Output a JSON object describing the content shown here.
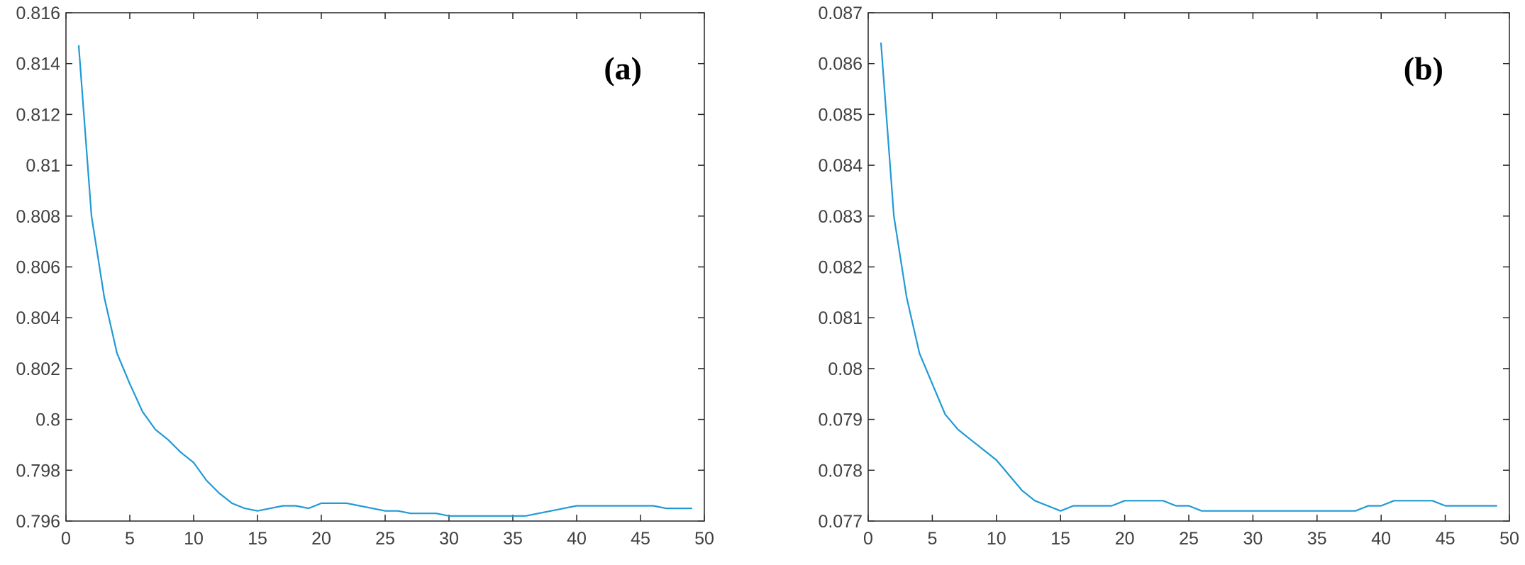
{
  "chart_data": [
    {
      "type": "line",
      "panel_label": "(a)",
      "xlim": [
        0,
        50
      ],
      "ylim": [
        0.796,
        0.816
      ],
      "x_ticks": [
        "0",
        "5",
        "10",
        "15",
        "20",
        "25",
        "30",
        "35",
        "40",
        "45",
        "50"
      ],
      "y_ticks": [
        "0.796",
        "0.798",
        "0.8",
        "0.802",
        "0.804",
        "0.806",
        "0.808",
        "0.81",
        "0.812",
        "0.814",
        "0.816"
      ],
      "grid": false,
      "line_color": "#1f9ad6",
      "series": [
        {
          "x": [
            1,
            2,
            3,
            4,
            5,
            6,
            7,
            8,
            9,
            10,
            11,
            12,
            13,
            14,
            15,
            16,
            17,
            18,
            19,
            20,
            21,
            22,
            23,
            24,
            25,
            26,
            27,
            28,
            29,
            30,
            31,
            32,
            33,
            34,
            35,
            36,
            37,
            38,
            39,
            40,
            41,
            42,
            43,
            44,
            45,
            46,
            47,
            48,
            49
          ],
          "y": [
            0.8147,
            0.808,
            0.8048,
            0.8026,
            0.8014,
            0.8003,
            0.7996,
            0.7992,
            0.7987,
            0.7983,
            0.7976,
            0.7971,
            0.7967,
            0.7965,
            0.7964,
            0.7965,
            0.7966,
            0.7966,
            0.7965,
            0.7967,
            0.7967,
            0.7967,
            0.7966,
            0.7965,
            0.7964,
            0.7964,
            0.7963,
            0.7963,
            0.7963,
            0.7962,
            0.7962,
            0.7962,
            0.7962,
            0.7962,
            0.7962,
            0.7962,
            0.7963,
            0.7964,
            0.7965,
            0.7966,
            0.7966,
            0.7966,
            0.7966,
            0.7966,
            0.7966,
            0.7966,
            0.7965,
            0.7965,
            0.7965
          ]
        }
      ]
    },
    {
      "type": "line",
      "panel_label": "(b)",
      "xlim": [
        0,
        50
      ],
      "ylim": [
        0.077,
        0.087
      ],
      "x_ticks": [
        "0",
        "5",
        "10",
        "15",
        "20",
        "25",
        "30",
        "35",
        "40",
        "45",
        "50"
      ],
      "y_ticks": [
        "0.077",
        "0.078",
        "0.079",
        "0.08",
        "0.081",
        "0.082",
        "0.083",
        "0.084",
        "0.085",
        "0.086",
        "0.087"
      ],
      "grid": false,
      "line_color": "#1f9ad6",
      "series": [
        {
          "x": [
            1,
            2,
            3,
            4,
            5,
            6,
            7,
            8,
            9,
            10,
            11,
            12,
            13,
            14,
            15,
            16,
            17,
            18,
            19,
            20,
            21,
            22,
            23,
            24,
            25,
            26,
            27,
            28,
            29,
            30,
            31,
            32,
            33,
            34,
            35,
            36,
            37,
            38,
            39,
            40,
            41,
            42,
            43,
            44,
            45,
            46,
            47,
            48,
            49
          ],
          "y": [
            0.0864,
            0.083,
            0.0814,
            0.0803,
            0.0797,
            0.0791,
            0.0788,
            0.0786,
            0.0784,
            0.0782,
            0.0779,
            0.0776,
            0.0774,
            0.0773,
            0.0772,
            0.0773,
            0.0773,
            0.0773,
            0.0773,
            0.0774,
            0.0774,
            0.0774,
            0.0774,
            0.0773,
            0.0773,
            0.0772,
            0.0772,
            0.0772,
            0.0772,
            0.0772,
            0.0772,
            0.0772,
            0.0772,
            0.0772,
            0.0772,
            0.0772,
            0.0772,
            0.0772,
            0.0773,
            0.0773,
            0.0774,
            0.0774,
            0.0774,
            0.0774,
            0.0773,
            0.0773,
            0.0773,
            0.0773,
            0.0773
          ]
        }
      ]
    }
  ]
}
